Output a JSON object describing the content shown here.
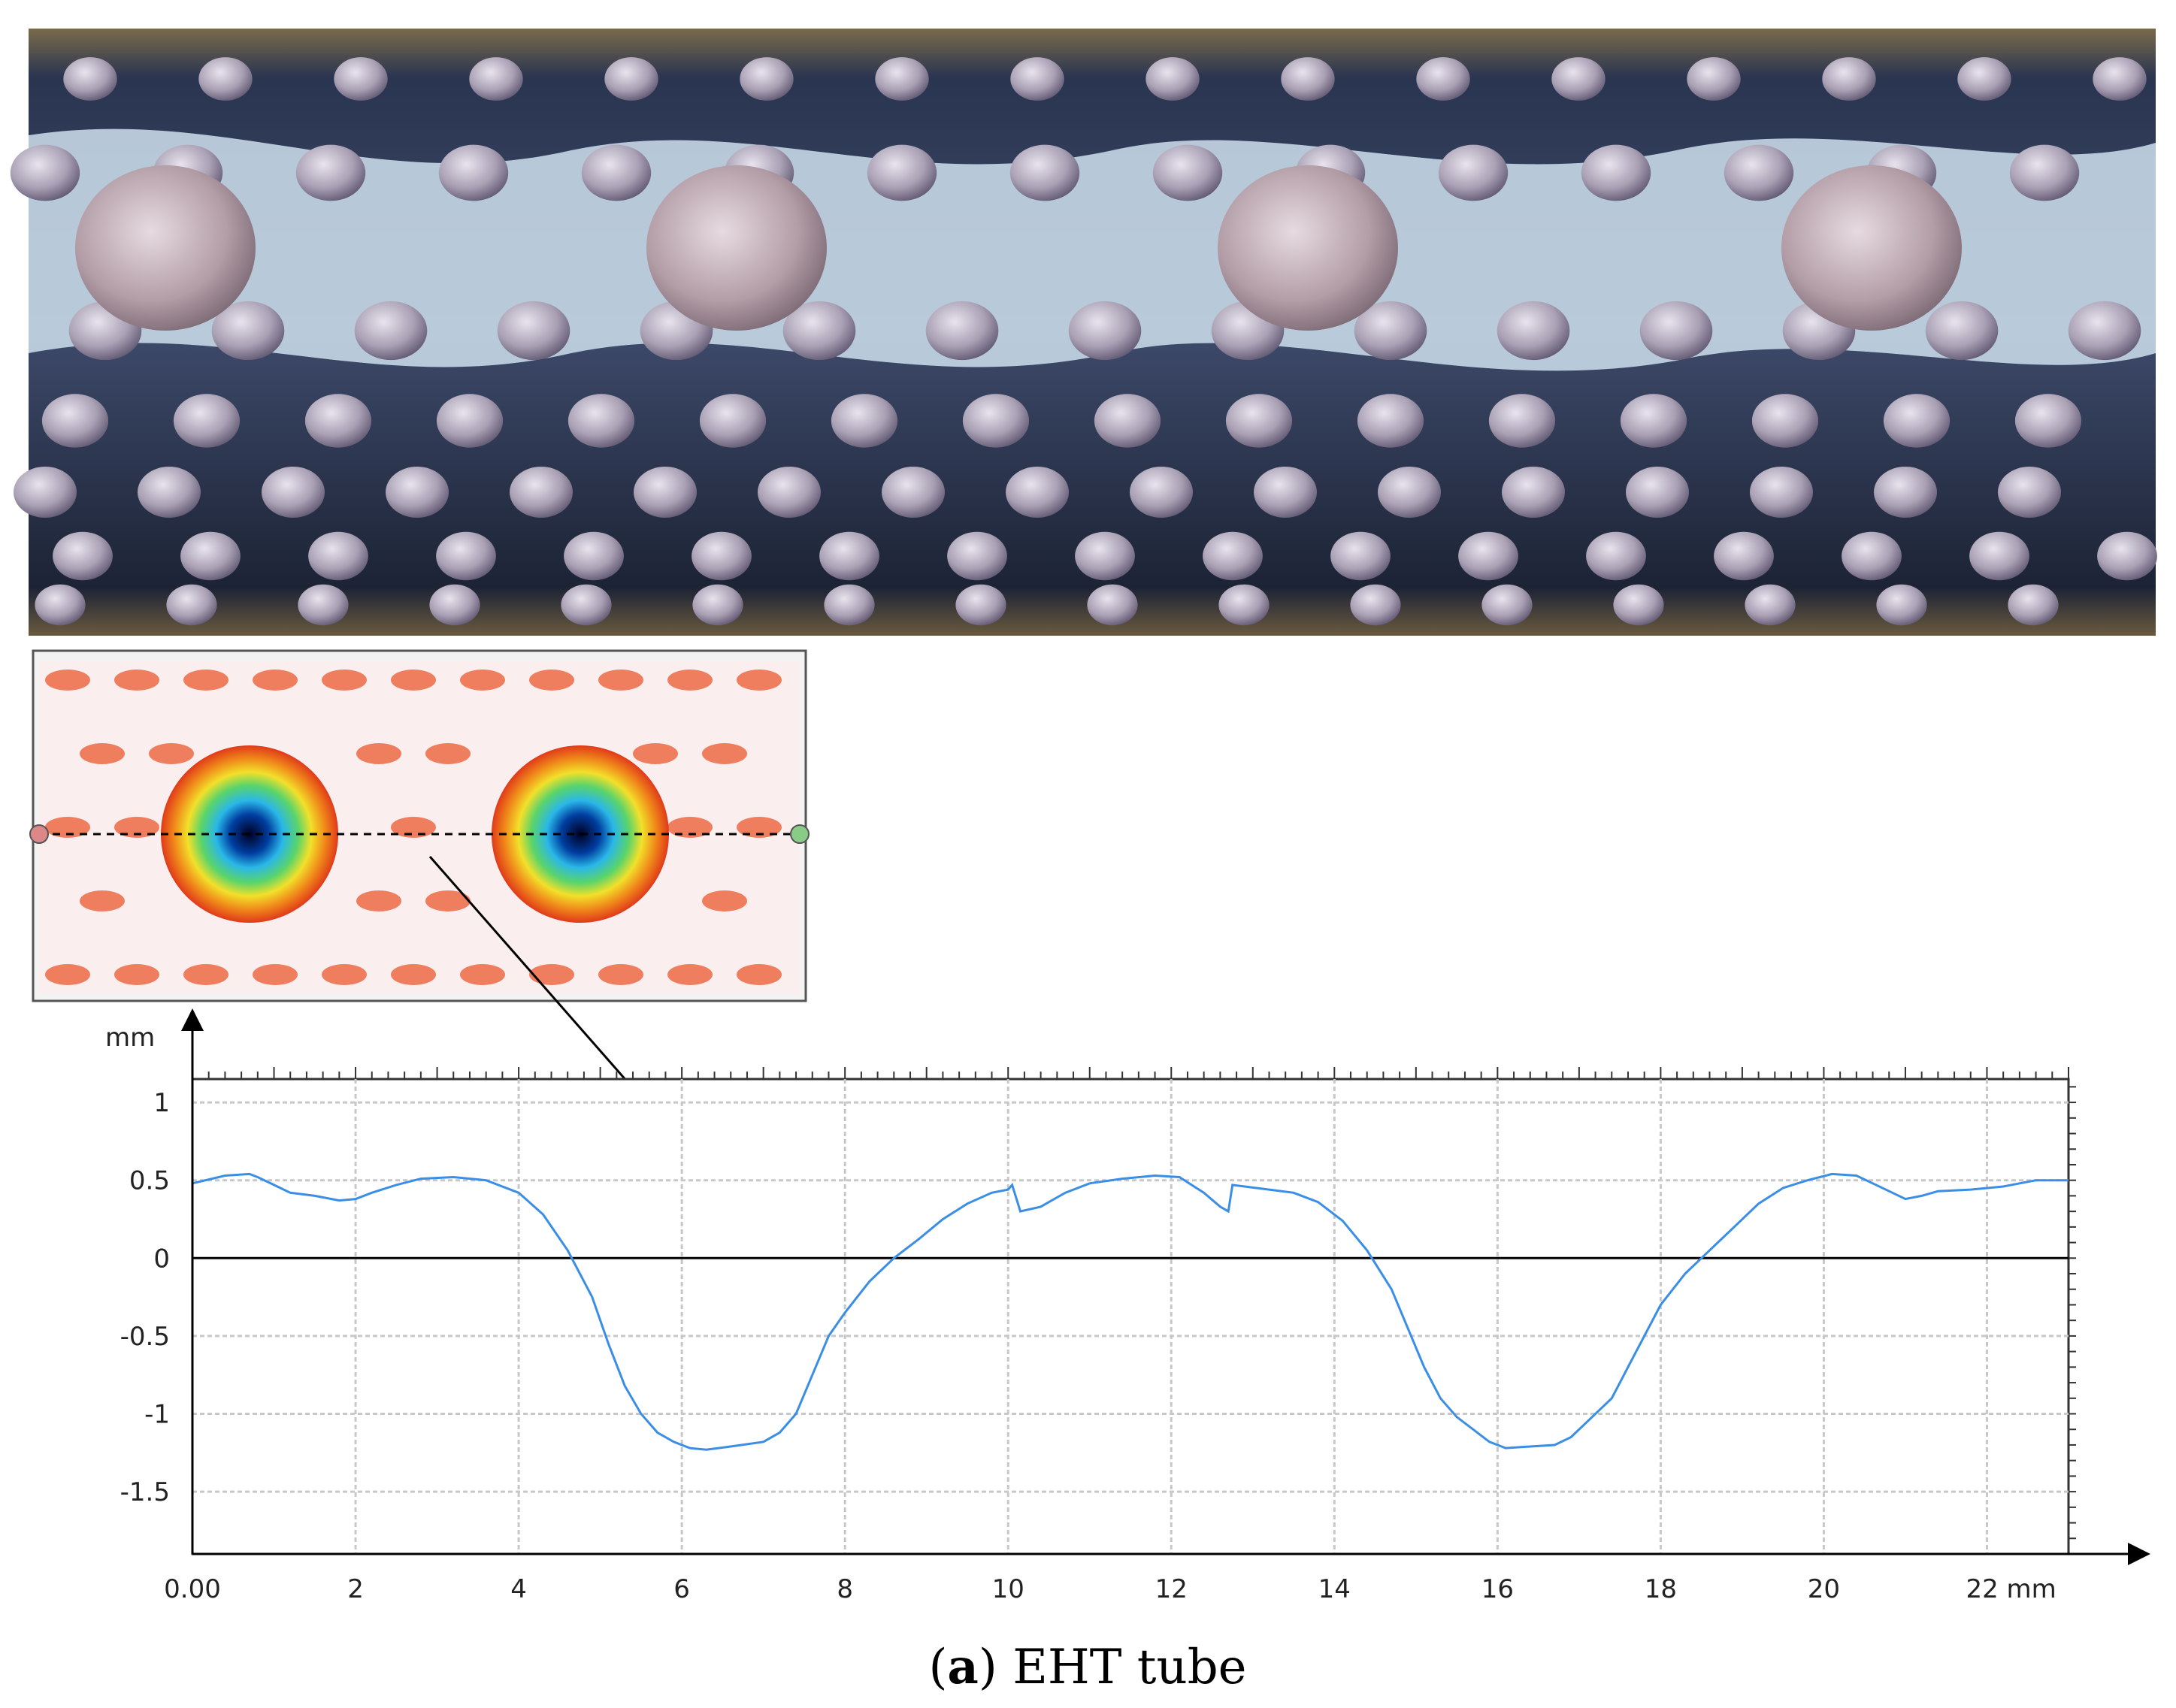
{
  "caption": {
    "prefix": "(",
    "letter": "a",
    "rest": ") EHT tube"
  },
  "photo": {
    "description_icon": "tube-surface-photo",
    "colors": {
      "base": "#2a3550",
      "dimple": "#b7aebd",
      "coat": "#dceaf5",
      "background": "#6a5a3e"
    }
  },
  "contour_map": {
    "icon": "surface-height-map",
    "colors": {
      "low": "#000022",
      "mid": "#2ab7e8",
      "high": "#e03a1a",
      "bg": "#fbeeee"
    }
  },
  "chart_data": {
    "type": "line",
    "title": "",
    "xlabel": "mm",
    "ylabel": "mm",
    "xlim": [
      0,
      23
    ],
    "ylim": [
      -1.9,
      1.15
    ],
    "x_ticks": [
      "0.00",
      "2",
      "4",
      "6",
      "8",
      "10",
      "12",
      "14",
      "16",
      "18",
      "20",
      "22 mm"
    ],
    "x_tick_values": [
      0,
      2,
      4,
      6,
      8,
      10,
      12,
      14,
      16,
      18,
      20,
      22
    ],
    "y_ticks": [
      "1",
      "0.5",
      "0",
      "-0.5",
      "-1",
      "-1.5"
    ],
    "y_tick_values": [
      1,
      0.5,
      0,
      -0.5,
      -1,
      -1.5
    ],
    "y_unit_label": "mm",
    "grid": true,
    "line_color": "#3a8ee6",
    "series": [
      {
        "x": [
          0,
          0.4,
          0.7,
          0.8,
          1.0,
          1.2,
          1.5,
          1.8,
          2.0,
          2.2,
          2.5,
          2.8,
          3.2,
          3.6,
          4.0,
          4.3,
          4.6,
          4.9,
          5.1,
          5.3,
          5.5,
          5.7,
          5.9,
          6.1,
          6.3,
          6.6,
          7.0,
          7.2,
          7.4,
          7.6,
          7.8,
          8.0,
          8.3,
          8.6,
          8.9,
          9.2,
          9.5,
          9.8,
          10.0,
          10.05,
          10.15,
          10.4,
          10.7,
          11.0,
          11.4,
          11.8,
          12.1,
          12.4,
          12.6,
          12.7,
          12.75,
          12.9,
          13.2,
          13.5,
          13.8,
          14.1,
          14.4,
          14.7,
          14.9,
          15.1,
          15.3,
          15.5,
          15.7,
          15.9,
          16.1,
          16.4,
          16.7,
          16.9,
          17.1,
          17.4,
          17.7,
          18.0,
          18.3,
          18.6,
          18.9,
          19.2,
          19.5,
          19.8,
          20.1,
          20.4,
          20.6,
          20.8,
          21.0,
          21.2,
          21.4,
          21.8,
          22.2,
          22.6,
          23.0
        ],
        "y": [
          0.48,
          0.53,
          0.54,
          0.52,
          0.47,
          0.42,
          0.4,
          0.37,
          0.38,
          0.42,
          0.47,
          0.51,
          0.52,
          0.5,
          0.42,
          0.28,
          0.05,
          -0.25,
          -0.55,
          -0.82,
          -1.0,
          -1.12,
          -1.18,
          -1.22,
          -1.23,
          -1.21,
          -1.18,
          -1.12,
          -1.0,
          -0.75,
          -0.5,
          -0.35,
          -0.15,
          0.0,
          0.12,
          0.25,
          0.35,
          0.42,
          0.44,
          0.47,
          0.3,
          0.33,
          0.42,
          0.48,
          0.51,
          0.53,
          0.52,
          0.42,
          0.33,
          0.3,
          0.47,
          0.46,
          0.44,
          0.42,
          0.36,
          0.24,
          0.05,
          -0.2,
          -0.45,
          -0.7,
          -0.9,
          -1.02,
          -1.1,
          -1.18,
          -1.22,
          -1.21,
          -1.2,
          -1.15,
          -1.05,
          -0.9,
          -0.6,
          -0.3,
          -0.1,
          0.05,
          0.2,
          0.35,
          0.45,
          0.5,
          0.54,
          0.53,
          0.48,
          0.43,
          0.38,
          0.4,
          0.43,
          0.44,
          0.46,
          0.5,
          0.5
        ]
      }
    ]
  }
}
